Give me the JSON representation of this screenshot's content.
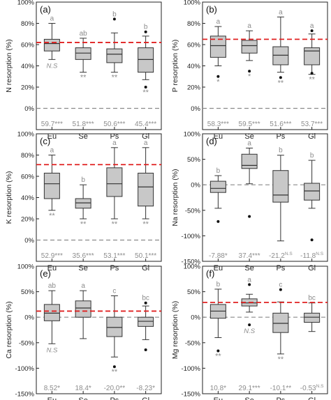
{
  "figure": {
    "categories": [
      "Eu",
      "Se",
      "Ps",
      "Gl"
    ],
    "colors": {
      "box": "#c8c8c8",
      "edge": "#333333",
      "ref": "#e02020",
      "zero": "#8a8a8a",
      "note": "#8c8c8c"
    }
  },
  "chart_data": [
    {
      "type": "boxplot",
      "panel_label": "(a)",
      "ylabel": "N resorption (%)",
      "ylim": [
        -20,
        100
      ],
      "ytick_values": [
        0,
        20,
        40,
        60,
        80,
        100
      ],
      "ytick_labels": [
        "0%",
        "20%",
        "40%",
        "60%",
        "80%",
        "100%"
      ],
      "zero_line": 0,
      "reference_line": 62,
      "categories": [
        "Eu",
        "Se",
        "Ps",
        "Gl"
      ],
      "boxes": [
        {
          "whisker_low": 46,
          "q1": 54,
          "median": 61,
          "q3": 65,
          "whisker_high": 80,
          "outliers": []
        },
        {
          "whisker_low": 34,
          "q1": 46,
          "median": 52,
          "q3": 57,
          "whisker_high": 66,
          "outliers": []
        },
        {
          "whisker_low": 34,
          "q1": 43,
          "median": 51,
          "q3": 56,
          "whisker_high": 71,
          "outliers": [
            84
          ]
        },
        {
          "whisker_low": 27,
          "q1": 34,
          "median": 46,
          "q3": 57,
          "whisker_high": 68,
          "outliers": [
            72,
            20
          ]
        }
      ],
      "letters": [
        "a",
        "ab",
        "b",
        "b"
      ],
      "stars": [
        "N.S",
        "**",
        "**",
        "**"
      ],
      "footer": [
        "59.7***",
        "51.8***",
        "50.6***",
        "45.4***"
      ]
    },
    {
      "type": "boxplot",
      "panel_label": "(b)",
      "ylabel": "P resorption (%)",
      "ylim": [
        -20,
        100
      ],
      "ytick_values": [
        0,
        20,
        40,
        60,
        80,
        100
      ],
      "ytick_labels": [
        "0%",
        "20%",
        "40%",
        "60%",
        "80%",
        "100%"
      ],
      "zero_line": 0,
      "reference_line": 65,
      "categories": [
        "Eu",
        "Se",
        "Ps",
        "Gl"
      ],
      "boxes": [
        {
          "whisker_low": 40,
          "q1": 48,
          "median": 59,
          "q3": 68,
          "whisker_high": 77,
          "outliers": [
            30
          ]
        },
        {
          "whisker_low": 45,
          "q1": 52,
          "median": 59,
          "q3": 64,
          "whisker_high": 73,
          "outliers": [
            35
          ]
        },
        {
          "whisker_low": 34,
          "q1": 41,
          "median": 50,
          "q3": 58,
          "whisker_high": 86,
          "outliers": [
            29
          ]
        },
        {
          "whisker_low": 32,
          "q1": 41,
          "median": 54,
          "q3": 57,
          "whisker_high": 70,
          "outliers": [
            73,
            33
          ]
        }
      ],
      "letters": [
        "a",
        "a",
        "a",
        "a"
      ],
      "stars": [
        "*",
        "*",
        "**",
        "**"
      ],
      "footer": [
        "58.3***",
        "59.5***",
        "51.6***",
        "53.7***"
      ]
    },
    {
      "type": "boxplot",
      "panel_label": "(c)",
      "ylabel": "K resorption (%)",
      "ylim": [
        -20,
        100
      ],
      "ytick_values": [
        0,
        20,
        40,
        60,
        80,
        100
      ],
      "ytick_labels": [
        "0%",
        "20%",
        "40%",
        "60%",
        "80%",
        "100%"
      ],
      "zero_line": 0,
      "reference_line": 71,
      "categories": [
        "Eu",
        "Se",
        "Ps",
        "Gl"
      ],
      "boxes": [
        {
          "whisker_low": 28,
          "q1": 39,
          "median": 53,
          "q3": 63,
          "whisker_high": 80,
          "outliers": []
        },
        {
          "whisker_low": 20,
          "q1": 30,
          "median": 35,
          "q3": 39,
          "whisker_high": 52,
          "outliers": []
        },
        {
          "whisker_low": 20,
          "q1": 41,
          "median": 53,
          "q3": 68,
          "whisker_high": 87,
          "outliers": []
        },
        {
          "whisker_low": 20,
          "q1": 32,
          "median": 50,
          "q3": 63,
          "whisker_high": 87,
          "outliers": []
        }
      ],
      "letters": [
        "a",
        "b",
        "a",
        "a"
      ],
      "stars": [
        "**",
        "**",
        "**",
        "**"
      ],
      "footer": [
        "52.9***",
        "35.6***",
        "53.1***",
        "50.1***"
      ]
    },
    {
      "type": "boxplot",
      "panel_label": "(d)",
      "ylabel": "Na resorption (%)",
      "ylim": [
        -150,
        100
      ],
      "ytick_values": [
        -150,
        -100,
        -50,
        0,
        50,
        100
      ],
      "ytick_labels": [
        "-150%",
        "-100%",
        "-50%",
        "0%",
        "50%",
        "100%"
      ],
      "zero_line": 0,
      "reference_line": null,
      "categories": [
        "Eu",
        "Se",
        "Ps",
        "Gl"
      ],
      "boxes": [
        {
          "whisker_low": -46,
          "q1": -15,
          "median": -7,
          "q3": 7,
          "whisker_high": 18,
          "outliers": [
            -72
          ]
        },
        {
          "whisker_low": 2,
          "q1": 32,
          "median": 38,
          "q3": 60,
          "whisker_high": 72,
          "outliers": [
            -62
          ]
        },
        {
          "whisker_low": -110,
          "q1": -34,
          "median": -20,
          "q3": 28,
          "whisker_high": 58,
          "outliers": []
        },
        {
          "whisker_low": -46,
          "q1": -30,
          "median": -12,
          "q3": 3,
          "whisker_high": 48,
          "outliers": [
            -108
          ]
        }
      ],
      "letters": [
        "b",
        "a",
        "b",
        "b"
      ],
      "stars": [
        "",
        "",
        "",
        ""
      ],
      "footer": [
        "-7.88*",
        "37.4***",
        "-21.2N.S",
        "-11.8N.S"
      ]
    },
    {
      "type": "boxplot",
      "panel_label": "(e)",
      "ylabel": "Ca resorption (%)",
      "ylim": [
        -150,
        100
      ],
      "ytick_values": [
        -150,
        -100,
        -50,
        0,
        50,
        100
      ],
      "ytick_labels": [
        "-150%",
        "-100%",
        "-50%",
        "0%",
        "50%",
        "100%"
      ],
      "zero_line": 0,
      "reference_line": 12,
      "categories": [
        "Eu",
        "Se",
        "Ps",
        "Gl"
      ],
      "boxes": [
        {
          "whisker_low": -52,
          "q1": -7,
          "median": 8,
          "q3": 25,
          "whisker_high": 52,
          "outliers": []
        },
        {
          "whisker_low": -42,
          "q1": 0,
          "median": 18,
          "q3": 32,
          "whisker_high": 52,
          "outliers": []
        },
        {
          "whisker_low": -78,
          "q1": -38,
          "median": -20,
          "q3": 0,
          "whisker_high": 42,
          "outliers": [
            -97
          ]
        },
        {
          "whisker_low": -44,
          "q1": -18,
          "median": -8,
          "q3": 0,
          "whisker_high": 22,
          "outliers": [
            28,
            -64
          ]
        }
      ],
      "letters": [
        "ab",
        "a",
        "c",
        "bc"
      ],
      "stars": [
        "N.S",
        "",
        "**",
        ""
      ],
      "footer": [
        "8.52*",
        "18.4*",
        "-20.0**",
        "-8.23*"
      ]
    },
    {
      "type": "boxplot",
      "panel_label": "(f)",
      "ylabel": "Mg resorption (%)",
      "ylim": [
        -150,
        100
      ],
      "ytick_values": [
        -150,
        -100,
        -50,
        0,
        50,
        100
      ],
      "ytick_labels": [
        "-150%",
        "-100%",
        "-50%",
        "0%",
        "50%",
        "100%"
      ],
      "zero_line": 0,
      "reference_line": 29,
      "categories": [
        "Eu",
        "Se",
        "Ps",
        "Gl"
      ],
      "boxes": [
        {
          "whisker_low": -40,
          "q1": -2,
          "median": 12,
          "q3": 25,
          "whisker_high": 55,
          "outliers": [
            -66
          ]
        },
        {
          "whisker_low": 10,
          "q1": 22,
          "median": 28,
          "q3": 36,
          "whisker_high": 45,
          "outliers": [
            64,
            -15
          ]
        },
        {
          "whisker_low": -72,
          "q1": -30,
          "median": -12,
          "q3": 8,
          "whisker_high": 30,
          "outliers": [
            54
          ]
        },
        {
          "whisker_low": -28,
          "q1": -10,
          "median": 0,
          "q3": 8,
          "whisker_high": 28,
          "outliers": []
        }
      ],
      "letters": [
        "b",
        "a",
        "c",
        "bc"
      ],
      "stars": [
        "**",
        "N.S",
        "**",
        ""
      ],
      "footer": [
        "10.8*",
        "29.1***",
        "-10.1**",
        "-0.53N.S"
      ]
    }
  ]
}
